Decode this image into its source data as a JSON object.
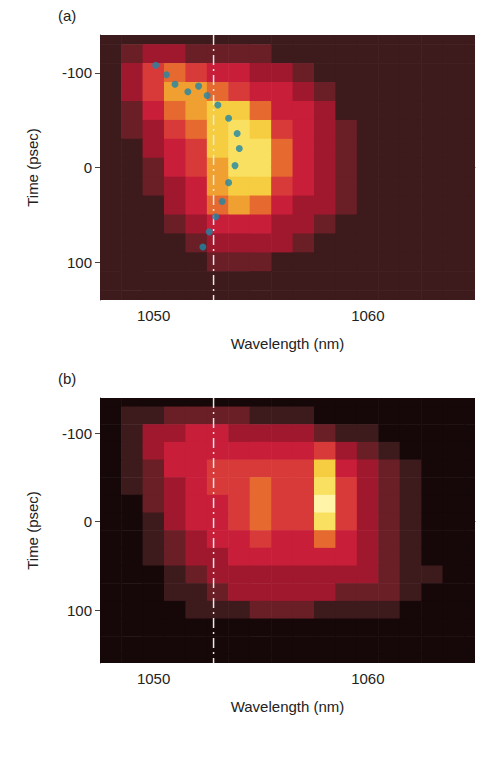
{
  "chart_data": [
    {
      "type": "heatmap",
      "panel_label": "(a)",
      "x_label": "Wavelength (nm)",
      "y_label": "Time (psec)",
      "xlim": [
        1047.5,
        1065
      ],
      "xticks": [
        1050,
        1060
      ],
      "ylim": [
        140,
        -140
      ],
      "yticks": [
        -100,
        0,
        100
      ],
      "cells": {
        "x": [
          1048,
          1049,
          1050,
          1051,
          1052,
          1053,
          1054,
          1055,
          1056,
          1057,
          1058,
          1059,
          1060,
          1061,
          1062,
          1063,
          1064,
          1065
        ],
        "y": [
          -140,
          -120,
          -100,
          -80,
          -60,
          -40,
          -20,
          0,
          20,
          40,
          60,
          80,
          100,
          120,
          140
        ],
        "values": [
          [
            1,
            1,
            1,
            1,
            1,
            1,
            1,
            1,
            1,
            1,
            1,
            1,
            1,
            1,
            1,
            1,
            1,
            1
          ],
          [
            1,
            2,
            3,
            3,
            2,
            2,
            2,
            2,
            1,
            1,
            1,
            1,
            1,
            1,
            1,
            1,
            1,
            1
          ],
          [
            1,
            3,
            5,
            6,
            5,
            4,
            4,
            3,
            3,
            2,
            1,
            1,
            1,
            1,
            1,
            1,
            1,
            1
          ],
          [
            1,
            3,
            5,
            7,
            7,
            6,
            5,
            4,
            4,
            3,
            2,
            1,
            1,
            1,
            1,
            1,
            1,
            1
          ],
          [
            1,
            2,
            4,
            6,
            7,
            8,
            8,
            6,
            4,
            4,
            3,
            1,
            1,
            1,
            1,
            1,
            1,
            1
          ],
          [
            1,
            2,
            3,
            5,
            6,
            8,
            9,
            8,
            5,
            4,
            3,
            2,
            1,
            1,
            1,
            1,
            1,
            1
          ],
          [
            1,
            1,
            3,
            4,
            5,
            8,
            9,
            9,
            6,
            4,
            3,
            2,
            1,
            1,
            1,
            1,
            1,
            1
          ],
          [
            1,
            1,
            2,
            4,
            5,
            7,
            9,
            9,
            6,
            4,
            3,
            2,
            1,
            1,
            1,
            1,
            1,
            1
          ],
          [
            1,
            1,
            2,
            3,
            4,
            7,
            8,
            8,
            5,
            4,
            3,
            2,
            1,
            1,
            1,
            1,
            1,
            1
          ],
          [
            1,
            1,
            1,
            3,
            4,
            6,
            7,
            6,
            4,
            3,
            3,
            2,
            1,
            1,
            1,
            1,
            1,
            1
          ],
          [
            1,
            1,
            1,
            2,
            3,
            4,
            4,
            4,
            3,
            3,
            2,
            1,
            1,
            1,
            1,
            1,
            1,
            1
          ],
          [
            1,
            1,
            1,
            1,
            2,
            3,
            3,
            3,
            3,
            2,
            1,
            1,
            1,
            1,
            1,
            1,
            1,
            1
          ],
          [
            1,
            1,
            1,
            1,
            1,
            2,
            2,
            2,
            1,
            1,
            1,
            1,
            1,
            1,
            1,
            1,
            1,
            1
          ],
          [
            1,
            1,
            1,
            1,
            1,
            1,
            1,
            1,
            1,
            1,
            1,
            1,
            1,
            1,
            1,
            1,
            1,
            1
          ],
          [
            1,
            1,
            1,
            1,
            1,
            1,
            1,
            1,
            1,
            1,
            1,
            1,
            1,
            1,
            1,
            1,
            1,
            1
          ]
        ],
        "value_range": [
          0,
          10
        ]
      },
      "series": [
        {
          "type": "scatter",
          "color": "#1f86a8",
          "marker": "circle",
          "x": [
            1050.1,
            1050.6,
            1051.0,
            1051.6,
            1052.1,
            1052.5,
            1053.0,
            1053.5,
            1053.9,
            1054.0,
            1053.8,
            1053.5,
            1053.2,
            1052.9,
            1052.6,
            1052.3
          ],
          "values": [
            -108,
            -98,
            -88,
            -80,
            -86,
            -76,
            -66,
            -52,
            -36,
            -20,
            -2,
            16,
            36,
            52,
            68,
            84
          ]
        }
      ],
      "reference_lines": [
        {
          "x": 1052.8,
          "line_style": "dashdot",
          "color": "#e8e8e8"
        }
      ]
    },
    {
      "type": "heatmap",
      "panel_label": "(b)",
      "x_label": "Wavelength (nm)",
      "y_label": "Time (psec)",
      "xlim": [
        1047.5,
        1065
      ],
      "xticks": [
        1050,
        1060
      ],
      "ylim": [
        160,
        -140
      ],
      "yticks": [
        -100,
        0,
        100
      ],
      "cells": {
        "x": [
          1048,
          1049,
          1050,
          1051,
          1052,
          1053,
          1054,
          1055,
          1056,
          1057,
          1058,
          1059,
          1060,
          1061,
          1062,
          1063,
          1064,
          1065
        ],
        "y": [
          -140,
          -120,
          -100,
          -80,
          -60,
          -40,
          -20,
          0,
          20,
          40,
          60,
          80,
          100,
          120,
          140,
          160
        ],
        "values": [
          [
            0,
            0,
            0,
            0,
            0,
            0,
            0,
            0,
            0,
            0,
            0,
            0,
            0,
            0,
            0,
            0,
            0,
            0
          ],
          [
            0,
            1,
            1,
            2,
            2,
            2,
            2,
            1,
            1,
            1,
            0,
            0,
            0,
            0,
            0,
            0,
            0,
            0
          ],
          [
            0,
            1,
            3,
            3,
            4,
            4,
            3,
            3,
            3,
            3,
            2,
            1,
            1,
            0,
            0,
            0,
            0,
            0
          ],
          [
            0,
            1,
            3,
            4,
            4,
            4,
            4,
            4,
            4,
            4,
            5,
            3,
            2,
            1,
            0,
            0,
            0,
            0
          ],
          [
            0,
            1,
            2,
            4,
            4,
            5,
            5,
            5,
            5,
            5,
            8,
            4,
            3,
            2,
            1,
            0,
            0,
            0
          ],
          [
            0,
            1,
            2,
            3,
            4,
            5,
            5,
            6,
            5,
            5,
            9,
            5,
            3,
            2,
            1,
            0,
            0,
            0
          ],
          [
            0,
            0,
            2,
            3,
            4,
            4,
            5,
            6,
            5,
            5,
            10,
            5,
            3,
            2,
            1,
            0,
            0,
            0
          ],
          [
            0,
            0,
            1,
            3,
            4,
            4,
            5,
            6,
            5,
            5,
            9,
            5,
            3,
            2,
            1,
            0,
            0,
            0
          ],
          [
            0,
            0,
            1,
            2,
            3,
            4,
            4,
            5,
            4,
            4,
            6,
            4,
            3,
            2,
            1,
            0,
            0,
            0
          ],
          [
            0,
            0,
            1,
            2,
            3,
            3,
            4,
            4,
            4,
            4,
            4,
            4,
            3,
            2,
            1,
            0,
            0,
            0
          ],
          [
            0,
            0,
            0,
            1,
            2,
            3,
            3,
            3,
            3,
            3,
            3,
            3,
            3,
            2,
            1,
            1,
            0,
            0
          ],
          [
            0,
            0,
            0,
            1,
            1,
            2,
            3,
            3,
            3,
            3,
            3,
            2,
            2,
            2,
            1,
            0,
            0,
            0
          ],
          [
            0,
            0,
            0,
            0,
            1,
            1,
            1,
            2,
            2,
            2,
            1,
            1,
            1,
            1,
            0,
            0,
            0,
            0
          ],
          [
            0,
            0,
            0,
            0,
            0,
            0,
            0,
            0,
            0,
            0,
            0,
            0,
            0,
            0,
            0,
            0,
            0,
            0
          ],
          [
            0,
            0,
            0,
            0,
            0,
            0,
            0,
            0,
            0,
            0,
            0,
            0,
            0,
            0,
            0,
            0,
            0,
            0
          ],
          [
            0,
            0,
            0,
            0,
            0,
            0,
            0,
            0,
            0,
            0,
            0,
            0,
            0,
            0,
            0,
            0,
            0,
            0
          ]
        ],
        "value_range": [
          0,
          10
        ]
      },
      "series": [],
      "reference_lines": [
        {
          "x": 1052.8,
          "line_style": "dashdot",
          "color": "#e8e8e8"
        }
      ]
    }
  ]
}
